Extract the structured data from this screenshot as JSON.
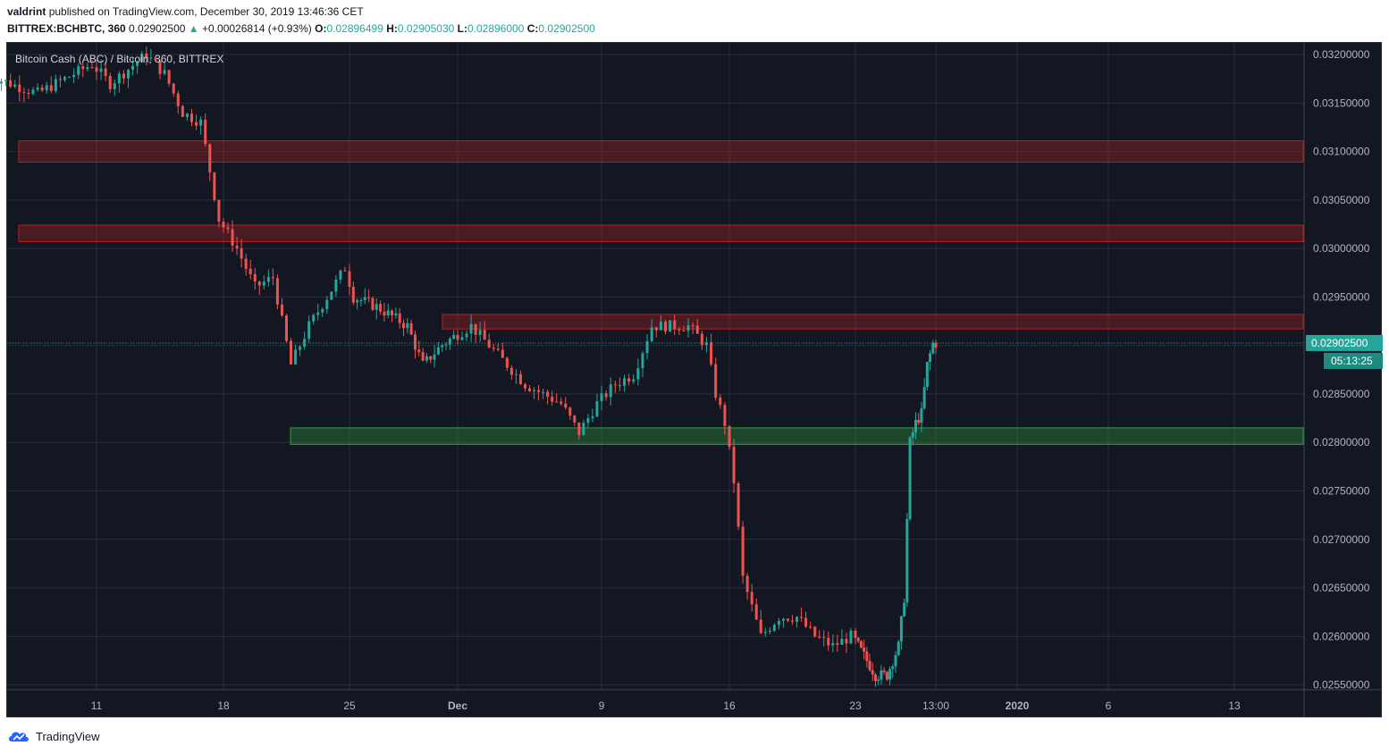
{
  "publication": {
    "author": "valdrint",
    "text": "published on TradingView.com, December 30, 2019 13:46:36 CET"
  },
  "symbol_bar": {
    "symbol": "BITTREX:BCHBTC, 360",
    "last": "0.02902500",
    "change": "+0.00026814 (+0.93%)",
    "open_label": "O:",
    "open": "0.02896499",
    "high_label": "H:",
    "high": "0.02905030",
    "low_label": "L:",
    "low": "0.02896000",
    "close_label": "C:",
    "close": "0.02902500"
  },
  "legend": "Bitcoin Cash (ABC) / Bitcoin, 360, BITTREX",
  "price_label": {
    "price": "0.02902500",
    "countdown": "05:13:25"
  },
  "footer": {
    "brand": "TradingView"
  },
  "colors": {
    "background": "#131722",
    "grid": "#2a2e39",
    "up": "#26a69a",
    "down": "#ef5350",
    "resistance_zone": "rgba(178,34,34,0.35)",
    "support_zone": "rgba(46,160,67,0.35)",
    "price_line": "#26a69a"
  },
  "chart_data": {
    "type": "candlestick",
    "title": "Bitcoin Cash (ABC) / Bitcoin, 360, BITTREX",
    "interval": "360",
    "x_ticks": [
      "11",
      "18",
      "25",
      "Dec",
      "9",
      "16",
      "23",
      "13:00",
      "2020",
      "6",
      "13"
    ],
    "y_ticks": [
      "0.03200000",
      "0.03150000",
      "0.03100000",
      "0.03050000",
      "0.03000000",
      "0.02950000",
      "0.02900000",
      "0.02850000",
      "0.02800000",
      "0.02750000",
      "0.02700000",
      "0.02650000",
      "0.02600000",
      "0.02550000"
    ],
    "ylim": [
      0.02545,
      0.03212
    ],
    "last_price": 0.029025,
    "zones": [
      {
        "kind": "resistance",
        "low": 0.03089,
        "high": 0.03111
      },
      {
        "kind": "resistance",
        "low": 0.03007,
        "high": 0.03024
      },
      {
        "kind": "resistance",
        "low": 0.02917,
        "high": 0.02932
      },
      {
        "kind": "support",
        "low": 0.02798,
        "high": 0.02815
      }
    ],
    "path_anchors": [
      [
        5,
        0.0318
      ],
      [
        8,
        0.0316
      ],
      [
        11,
        0.0319
      ],
      [
        12,
        0.0317
      ],
      [
        14,
        0.032
      ],
      [
        15,
        0.0318
      ],
      [
        16,
        0.0314
      ],
      [
        17,
        0.0313
      ],
      [
        18,
        0.0303
      ],
      [
        19,
        0.03
      ],
      [
        20,
        0.0296
      ],
      [
        21,
        0.0297
      ],
      [
        22,
        0.0288
      ],
      [
        23,
        0.0292
      ],
      [
        25,
        0.0298
      ],
      [
        25.5,
        0.0295
      ],
      [
        27,
        0.0294
      ],
      [
        28,
        0.0293
      ],
      [
        29,
        0.0292
      ],
      [
        30,
        0.0288
      ],
      [
        1.2,
        0.029
      ],
      [
        3,
        0.0292
      ],
      [
        4,
        0.029
      ],
      [
        5,
        0.0288
      ],
      [
        6,
        0.0286
      ],
      [
        8,
        0.0284
      ],
      [
        9,
        0.0281
      ],
      [
        10,
        0.0284
      ],
      [
        11,
        0.0286
      ],
      [
        12,
        0.0287
      ],
      [
        13,
        0.0292
      ],
      [
        14,
        0.0292
      ],
      [
        15,
        0.0292
      ],
      [
        16,
        0.029
      ],
      [
        16.5,
        0.0285
      ],
      [
        17,
        0.0282
      ],
      [
        17.5,
        0.0276
      ],
      [
        18,
        0.0266
      ],
      [
        19,
        0.026
      ],
      [
        20,
        0.0262
      ],
      [
        21,
        0.0262
      ],
      [
        22,
        0.026
      ],
      [
        23,
        0.0259
      ],
      [
        24,
        0.026
      ],
      [
        25,
        0.0258
      ],
      [
        26,
        0.0256
      ],
      [
        27,
        0.0256
      ],
      [
        28,
        0.0259
      ],
      [
        28.5,
        0.0264
      ],
      [
        29,
        0.028
      ],
      [
        29.5,
        0.0282
      ],
      [
        30,
        0.0283
      ],
      [
        30.5,
        0.0288
      ],
      [
        31,
        0.02902
      ]
    ]
  }
}
